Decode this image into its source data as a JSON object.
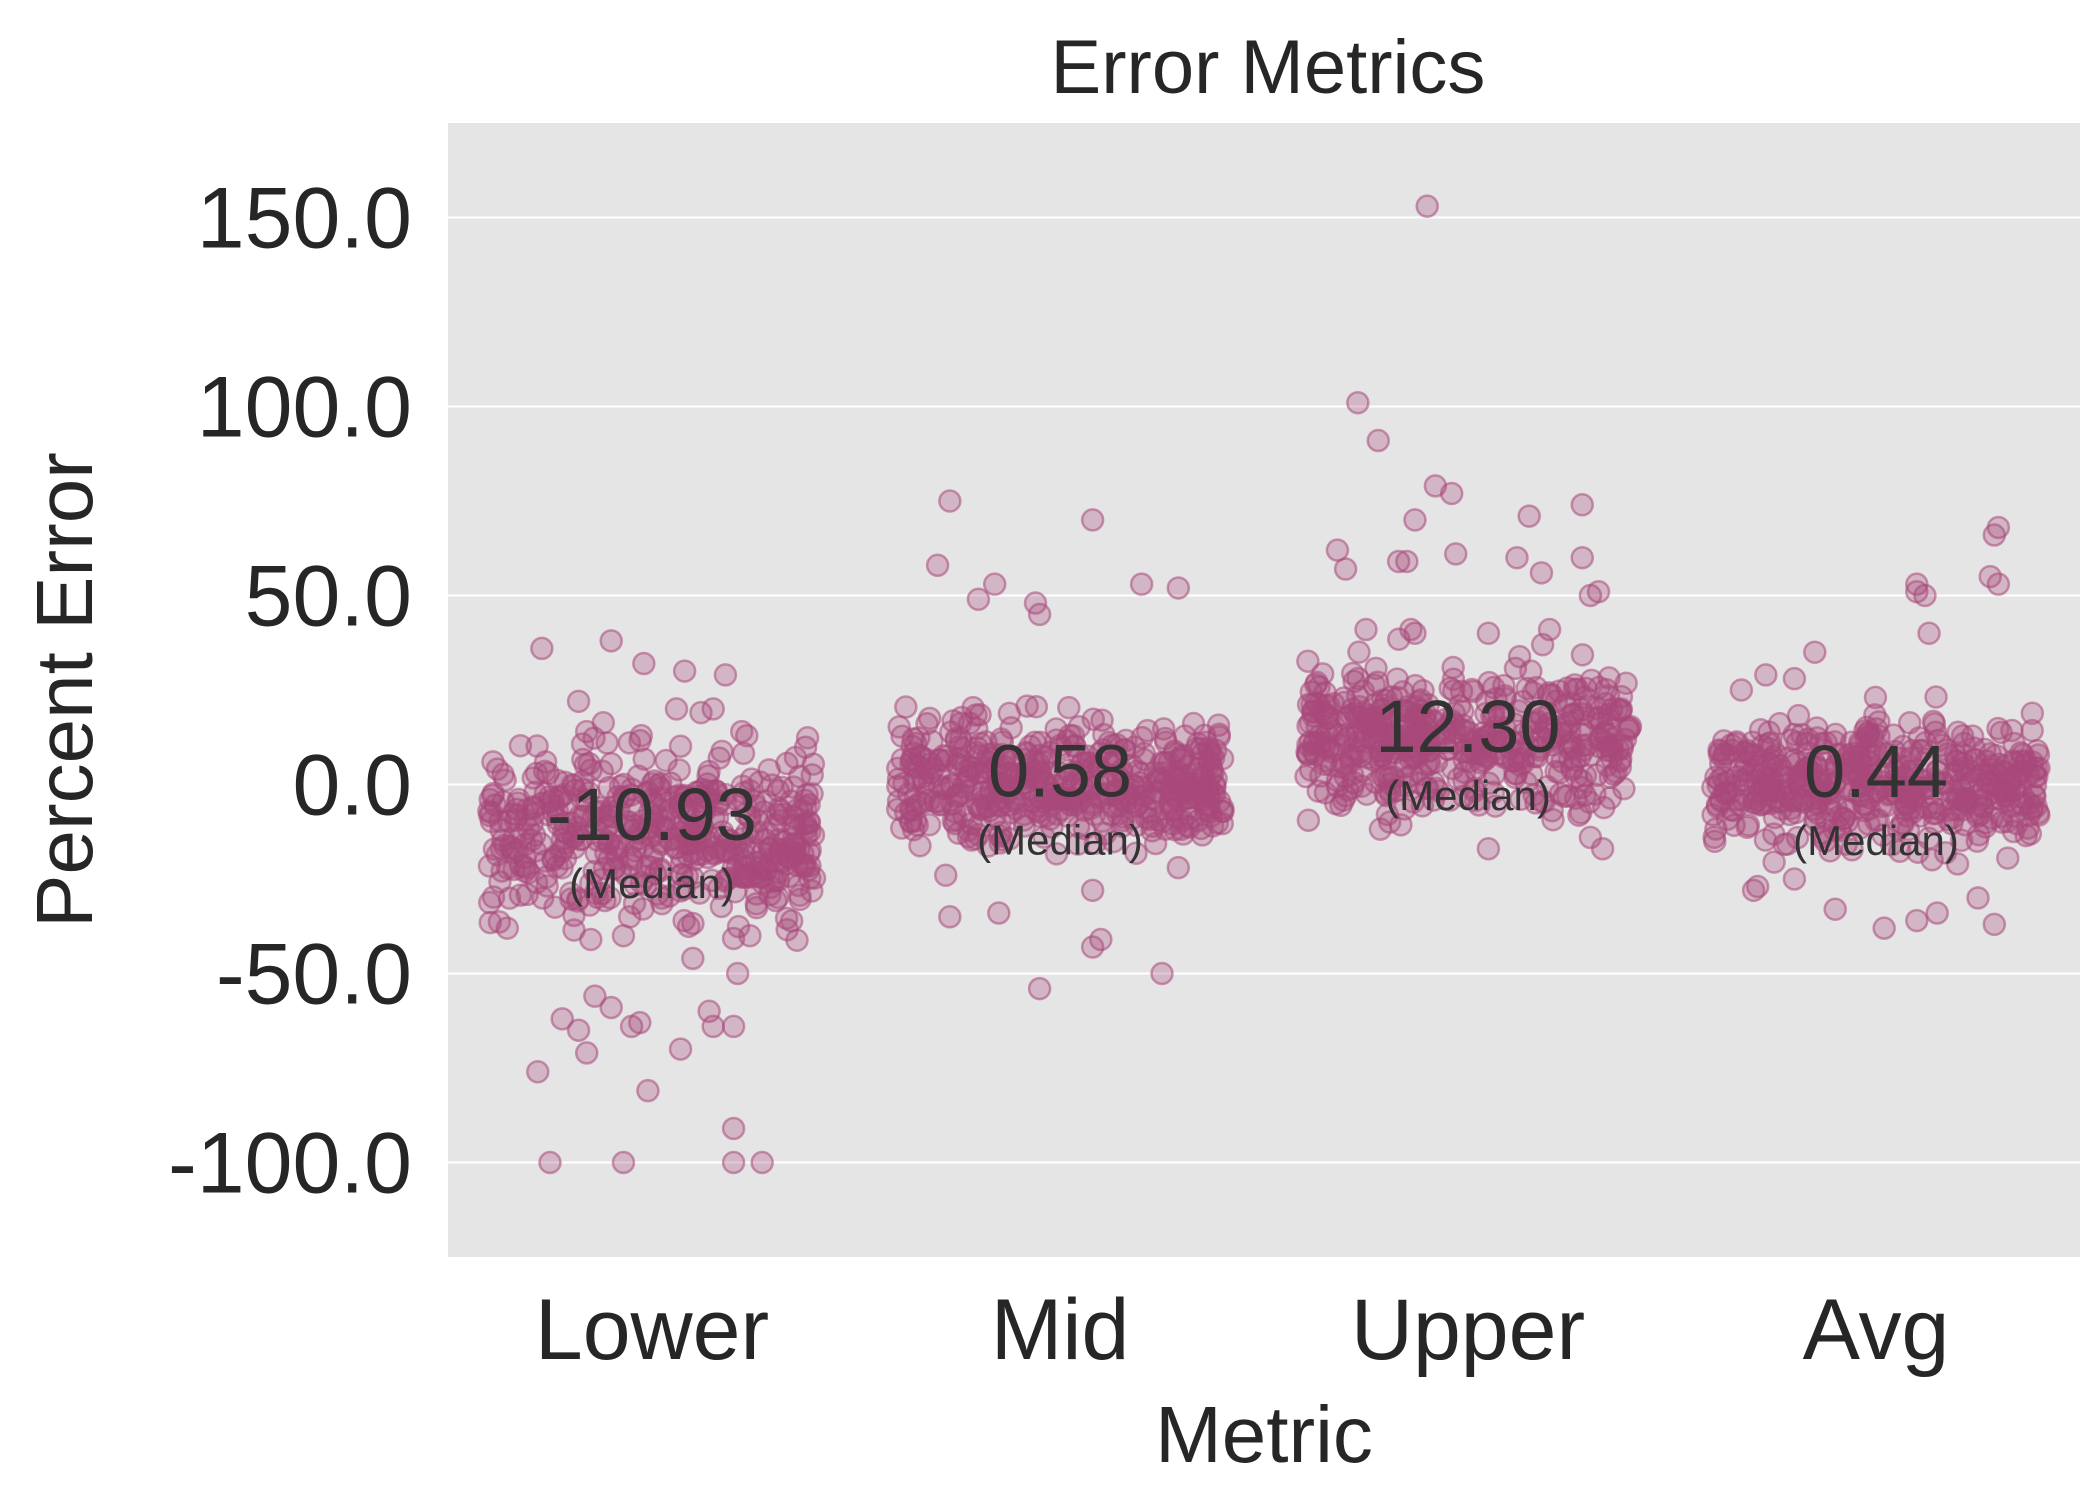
{
  "chart_data": {
    "type": "scatter",
    "subtype": "strip",
    "title": "Error Metrics",
    "xlabel": "Metric",
    "ylabel": "Percent Error",
    "categories": [
      "Lower",
      "Mid",
      "Upper",
      "Avg"
    ],
    "ylim": [
      -125,
      175
    ],
    "yticks": [
      150,
      100,
      50,
      0,
      -50,
      -100
    ],
    "ytick_labels": [
      "150.0",
      "100.0",
      "50.0",
      "0.0",
      "-50.0",
      "-100.0"
    ],
    "grid": true,
    "point_color": "#a8497a",
    "background_color": "#e5e5e5",
    "medians": [
      {
        "category": "Lower",
        "value": -10.93,
        "label": "-10.93",
        "sublabel": "(Median)"
      },
      {
        "category": "Mid",
        "value": 0.58,
        "label": "0.58",
        "sublabel": "(Median)"
      },
      {
        "category": "Upper",
        "value": 12.3,
        "label": "12.30",
        "sublabel": "(Median)"
      },
      {
        "category": "Avg",
        "value": 0.44,
        "label": "0.44",
        "sublabel": "(Median)"
      }
    ],
    "outliers": {
      "Lower": [
        [
          -0.27,
          36
        ],
        [
          -0.18,
          22
        ],
        [
          -0.16,
          14
        ],
        [
          -0.11,
          11
        ],
        [
          -0.1,
          38
        ],
        [
          -0.02,
          32
        ],
        [
          0.06,
          20
        ],
        [
          0.08,
          30
        ],
        [
          0.12,
          19
        ],
        [
          0.15,
          20
        ],
        [
          0.18,
          29
        ],
        [
          0.22,
          14
        ],
        [
          -0.28,
          -76
        ],
        [
          -0.25,
          -100
        ],
        [
          -0.22,
          -62
        ],
        [
          -0.18,
          -65
        ],
        [
          -0.16,
          -71
        ],
        [
          -0.14,
          -56
        ],
        [
          -0.1,
          -59
        ],
        [
          -0.07,
          -100
        ],
        [
          -0.05,
          -64
        ],
        [
          -0.03,
          -63
        ],
        [
          -0.01,
          -81
        ],
        [
          0.07,
          -70
        ],
        [
          0.14,
          -60
        ],
        [
          0.15,
          -64
        ],
        [
          0.2,
          -64
        ],
        [
          0.2,
          -91
        ],
        [
          0.2,
          -100
        ],
        [
          0.27,
          -100
        ],
        [
          -0.15,
          -41
        ],
        [
          -0.07,
          -40
        ],
        [
          0.1,
          -46
        ],
        [
          0.24,
          -40
        ],
        [
          0.21,
          -50
        ]
      ],
      "Mid": [
        [
          -0.3,
          58
        ],
        [
          -0.27,
          75
        ],
        [
          -0.2,
          49
        ],
        [
          -0.16,
          53
        ],
        [
          -0.06,
          48
        ],
        [
          -0.05,
          45
        ],
        [
          0.08,
          70
        ],
        [
          0.2,
          53
        ],
        [
          0.29,
          52
        ],
        [
          -0.28,
          -24
        ],
        [
          -0.27,
          -35
        ],
        [
          -0.15,
          -34
        ],
        [
          -0.05,
          -54
        ],
        [
          0.08,
          -28
        ],
        [
          0.08,
          -43
        ],
        [
          0.1,
          -41
        ],
        [
          0.25,
          -50
        ],
        [
          0.29,
          -22
        ]
      ],
      "Upper": [
        [
          -0.32,
          62
        ],
        [
          -0.3,
          57
        ],
        [
          -0.27,
          101
        ],
        [
          -0.22,
          91
        ],
        [
          -0.17,
          59
        ],
        [
          -0.15,
          59
        ],
        [
          -0.13,
          70
        ],
        [
          -0.13,
          40
        ],
        [
          -0.14,
          41
        ],
        [
          -0.1,
          153
        ],
        [
          -0.08,
          79
        ],
        [
          -0.04,
          77
        ],
        [
          -0.03,
          61
        ],
        [
          0.12,
          60
        ],
        [
          0.15,
          71
        ],
        [
          0.18,
          56
        ],
        [
          0.28,
          74
        ],
        [
          0.28,
          60
        ],
        [
          0.3,
          50
        ],
        [
          0.32,
          51
        ],
        [
          -0.25,
          41
        ],
        [
          0.05,
          40
        ],
        [
          0.2,
          41
        ],
        [
          0.05,
          -17
        ],
        [
          0.3,
          -14
        ],
        [
          0.33,
          -17
        ],
        [
          -0.3,
          -3
        ]
      ],
      "Avg": [
        [
          -0.33,
          25
        ],
        [
          -0.27,
          29
        ],
        [
          -0.2,
          28
        ],
        [
          -0.15,
          35
        ],
        [
          0.1,
          53
        ],
        [
          0.1,
          51
        ],
        [
          0.12,
          50
        ],
        [
          0.13,
          40
        ],
        [
          0.28,
          55
        ],
        [
          0.29,
          66
        ],
        [
          0.3,
          68
        ],
        [
          0.3,
          53
        ],
        [
          -0.3,
          -28
        ],
        [
          -0.29,
          -27
        ],
        [
          -0.2,
          -25
        ],
        [
          -0.1,
          -33
        ],
        [
          0.02,
          -38
        ],
        [
          0.1,
          -36
        ],
        [
          0.15,
          -34
        ],
        [
          0.2,
          -21
        ],
        [
          0.25,
          -30
        ],
        [
          0.29,
          -37
        ]
      ]
    },
    "core_bands": {
      "Lower": {
        "center": -13,
        "spread": 11
      },
      "Mid": {
        "center": 0.6,
        "spread": 8
      },
      "Upper": {
        "center": 12,
        "spread": 9
      },
      "Avg": {
        "center": 0.4,
        "spread": 8
      }
    }
  }
}
